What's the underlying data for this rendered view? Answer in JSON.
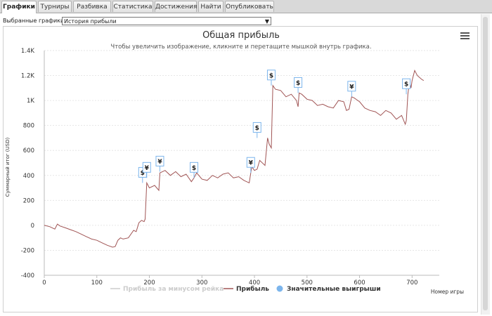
{
  "tabs": [
    {
      "label": "Графики",
      "active": true
    },
    {
      "label": "Турниры",
      "active": false
    },
    {
      "label": "Разбивка",
      "active": false
    },
    {
      "label": "Статистика",
      "active": false
    },
    {
      "label": "Достижения",
      "active": false
    },
    {
      "label": "Найти",
      "active": false
    },
    {
      "label": "Опубликовать",
      "active": false
    }
  ],
  "selector": {
    "label": "Выбранные графики:",
    "value": "История прибыли"
  },
  "chart_data": {
    "type": "line",
    "title": "Общая прибыль",
    "subtitle": "Чтобы увеличить изображение, кликните и перетащите мышкой внутрь графика.",
    "xlabel": "Номер игры",
    "ylabel": "Суммарный итог (USD)",
    "xlim": [
      0,
      725
    ],
    "ylim": [
      -400,
      1400
    ],
    "xticks": [
      "0",
      "100",
      "200",
      "300",
      "400",
      "500",
      "600",
      "700"
    ],
    "yticks": [
      "-400",
      "-200",
      "0",
      "200",
      "400",
      "600",
      "800",
      "1K",
      "1.2K",
      "1.4K"
    ],
    "grid": true,
    "legend_position": "bottom-center",
    "legend": [
      {
        "name": "Прибыль за минусом рейка",
        "color": "#cccccc",
        "enabled": false
      },
      {
        "name": "Прибыль",
        "color": "#a05454",
        "enabled": true
      },
      {
        "name": "Значительные выигрыши",
        "color": "#7cb5ec",
        "enabled": true
      }
    ],
    "series": [
      {
        "name": "Прибыль",
        "color": "#a05454",
        "x": [
          0,
          10,
          20,
          25,
          30,
          40,
          50,
          60,
          70,
          80,
          90,
          100,
          110,
          115,
          120,
          130,
          135,
          140,
          145,
          150,
          160,
          170,
          175,
          180,
          185,
          190,
          192,
          195,
          200,
          210,
          218,
          220,
          230,
          240,
          250,
          260,
          270,
          280,
          285,
          290,
          300,
          310,
          320,
          330,
          340,
          350,
          360,
          370,
          380,
          390,
          393,
          395,
          400,
          405,
          410,
          420,
          425,
          428,
          432,
          435,
          440,
          450,
          460,
          470,
          480,
          483,
          485,
          490,
          500,
          510,
          520,
          530,
          540,
          550,
          560,
          570,
          575,
          580,
          585,
          590,
          600,
          610,
          620,
          630,
          640,
          650,
          660,
          670,
          680,
          687,
          689,
          692,
          695,
          698,
          700,
          705,
          710,
          718,
          722
        ],
        "values": [
          0,
          -10,
          -30,
          10,
          -5,
          -20,
          -35,
          -50,
          -70,
          -90,
          -110,
          -120,
          -140,
          -150,
          -160,
          -175,
          -170,
          -120,
          -100,
          -110,
          -100,
          -40,
          -50,
          20,
          40,
          30,
          50,
          340,
          300,
          320,
          280,
          420,
          440,
          400,
          430,
          390,
          410,
          350,
          380,
          420,
          370,
          360,
          400,
          380,
          410,
          420,
          380,
          390,
          360,
          340,
          420,
          470,
          440,
          450,
          520,
          480,
          700,
          650,
          620,
          1120,
          1090,
          1080,
          1030,
          1050,
          1000,
          950,
          1060,
          1050,
          1010,
          1000,
          960,
          970,
          950,
          940,
          1000,
          990,
          920,
          930,
          1030,
          1020,
          990,
          940,
          920,
          910,
          880,
          920,
          900,
          850,
          880,
          810,
          840,
          1050,
          1150,
          1100,
          1160,
          1240,
          1200,
          1170,
          1160
        ]
      },
      {
        "name": "Значительные выигрыши",
        "color": "#7cb5ec",
        "markers": [
          {
            "x": 187,
            "y": 340,
            "symbol": "$"
          },
          {
            "x": 195,
            "y": 380,
            "symbol": "¥"
          },
          {
            "x": 220,
            "y": 430,
            "symbol": "¥"
          },
          {
            "x": 285,
            "y": 380,
            "symbol": "$"
          },
          {
            "x": 393,
            "y": 420,
            "symbol": "¥"
          },
          {
            "x": 405,
            "y": 700,
            "symbol": "$"
          },
          {
            "x": 432,
            "y": 1120,
            "symbol": "$"
          },
          {
            "x": 483,
            "y": 1060,
            "symbol": "$"
          },
          {
            "x": 585,
            "y": 1030,
            "symbol": "¥"
          },
          {
            "x": 689,
            "y": 1050,
            "symbol": "$"
          }
        ]
      }
    ]
  }
}
